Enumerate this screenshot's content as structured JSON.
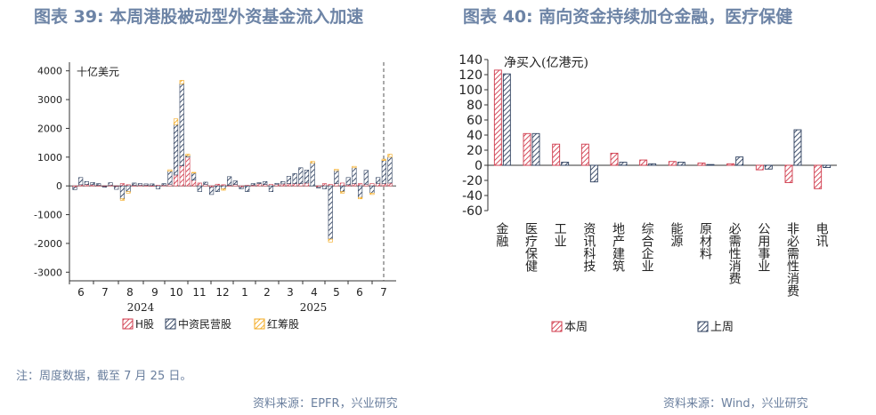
{
  "left_panel": {
    "title": "图表 39: 本周港股被动型外资基金流入加速",
    "unit": "十亿美元",
    "source": "资料来源：EPFR，兴业研究"
  },
  "right_panel": {
    "title": "图表 40: 南向资金持续加仓金融，医疗保健",
    "unit": "净买入(亿港元)",
    "source": "资料来源：Wind，兴业研究"
  },
  "note": "注：周度数据，截至 7 月 25 日。",
  "colors": {
    "red": "#d03a4b",
    "navy": "#2d3f5e",
    "orange": "#f3a81c",
    "axis": "#333333",
    "title": "#6d84a6"
  },
  "chart_data": [
    {
      "type": "bar",
      "stacked": true,
      "ylabel": "十亿美元",
      "ylim": [
        -3300,
        4300
      ],
      "yticks": [
        -3000,
        -2000,
        -1000,
        0,
        1000,
        2000,
        3000,
        4000
      ],
      "xtick_labels": [
        "6",
        "7",
        "8",
        "9",
        "10",
        "11",
        "12",
        "1",
        "2",
        "3",
        "4",
        "5",
        "6",
        "7"
      ],
      "year_labels": [
        "2024",
        "2025"
      ],
      "legend": [
        "H股",
        "中资民营股",
        "红筹股"
      ],
      "dashed_line_at": "7",
      "series": [
        {
          "name": "H股",
          "values": [
            -50,
            40,
            50,
            40,
            20,
            -20,
            30,
            -20,
            80,
            40,
            20,
            30,
            20,
            10,
            20,
            30,
            60,
            380,
            700,
            1000,
            200,
            100,
            50,
            -50,
            60,
            40,
            20,
            50,
            -50,
            20,
            30,
            80,
            50,
            50,
            60,
            70,
            80,
            80,
            80,
            100,
            0,
            -50,
            80,
            50,
            80,
            100,
            40,
            80,
            80,
            60,
            80,
            90,
            80,
            100
          ]
        },
        {
          "name": "中资民营股",
          "values": [
            -80,
            250,
            100,
            80,
            60,
            -20,
            80,
            -100,
            -450,
            -200,
            80,
            50,
            50,
            60,
            -100,
            50,
            450,
            1750,
            2850,
            50,
            250,
            -200,
            80,
            -250,
            -200,
            -100,
            300,
            120,
            -50,
            -200,
            50,
            30,
            100,
            -200,
            30,
            80,
            250,
            350,
            550,
            450,
            800,
            -20,
            -100,
            -1850,
            450,
            -200,
            250,
            550,
            -400,
            480,
            -250,
            200,
            800,
            900
          ]
        },
        {
          "name": "红筹股",
          "values": [
            0,
            0,
            0,
            0,
            0,
            0,
            0,
            0,
            -50,
            -50,
            0,
            0,
            0,
            0,
            0,
            0,
            50,
            200,
            120,
            50,
            20,
            0,
            0,
            0,
            0,
            -50,
            0,
            0,
            0,
            0,
            0,
            0,
            0,
            0,
            0,
            0,
            0,
            0,
            0,
            0,
            50,
            0,
            0,
            -100,
            50,
            -50,
            0,
            50,
            -50,
            0,
            -50,
            0,
            50,
            100
          ]
        }
      ]
    },
    {
      "type": "bar",
      "ylabel": "净买入(亿港元)",
      "ylim": [
        -60,
        140
      ],
      "yticks": [
        -60,
        -40,
        -20,
        0,
        20,
        40,
        60,
        80,
        100,
        120,
        140
      ],
      "categories": [
        "金融",
        "医疗保健",
        "工业",
        "资讯科技",
        "地产建筑",
        "综合企业",
        "能源",
        "原材料",
        "必需性消费",
        "公用事业",
        "非必需性消费",
        "电讯"
      ],
      "series": [
        {
          "name": "本周",
          "values": [
            126,
            42,
            28,
            28,
            16,
            7,
            5,
            3,
            2,
            -6,
            -23,
            -31
          ]
        },
        {
          "name": "上周",
          "values": [
            121,
            42,
            4,
            -22,
            4,
            2,
            4,
            1,
            11,
            -5,
            47,
            -3
          ]
        }
      ]
    }
  ]
}
